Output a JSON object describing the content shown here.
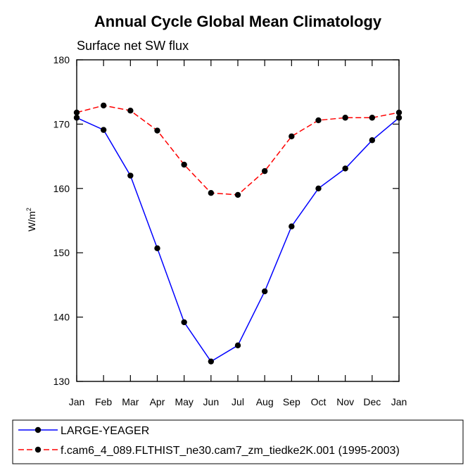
{
  "chart_data": {
    "type": "line",
    "title": "Annual Cycle Global Mean Climatology",
    "subtitle": "Surface net SW flux",
    "ylabel": "W/m",
    "ylabel_superscript": "2",
    "ylim": [
      130,
      180
    ],
    "yticks": [
      130,
      140,
      150,
      160,
      170,
      180
    ],
    "categories": [
      "Jan",
      "Feb",
      "Mar",
      "Apr",
      "May",
      "Jun",
      "Jul",
      "Aug",
      "Sep",
      "Oct",
      "Nov",
      "Dec",
      "Jan"
    ],
    "grid": false,
    "legend_position": "bottom",
    "series": [
      {
        "name": "LARGE-YEAGER",
        "color": "#0000ff",
        "dash": "solid",
        "values": [
          171.0,
          169.1,
          162.0,
          150.7,
          139.2,
          133.1,
          135.6,
          144.0,
          154.1,
          160.0,
          163.1,
          167.5,
          171.0
        ]
      },
      {
        "name": "f.cam6_4_089.FLTHIST_ne30.cam7_zm_tiedke2K.001 (1995-2003)",
        "color": "#ff0000",
        "dash": "dashed",
        "values": [
          171.8,
          172.9,
          172.1,
          169.0,
          163.7,
          159.3,
          159.0,
          162.7,
          168.1,
          170.6,
          171.0,
          171.0,
          171.8
        ]
      }
    ]
  }
}
